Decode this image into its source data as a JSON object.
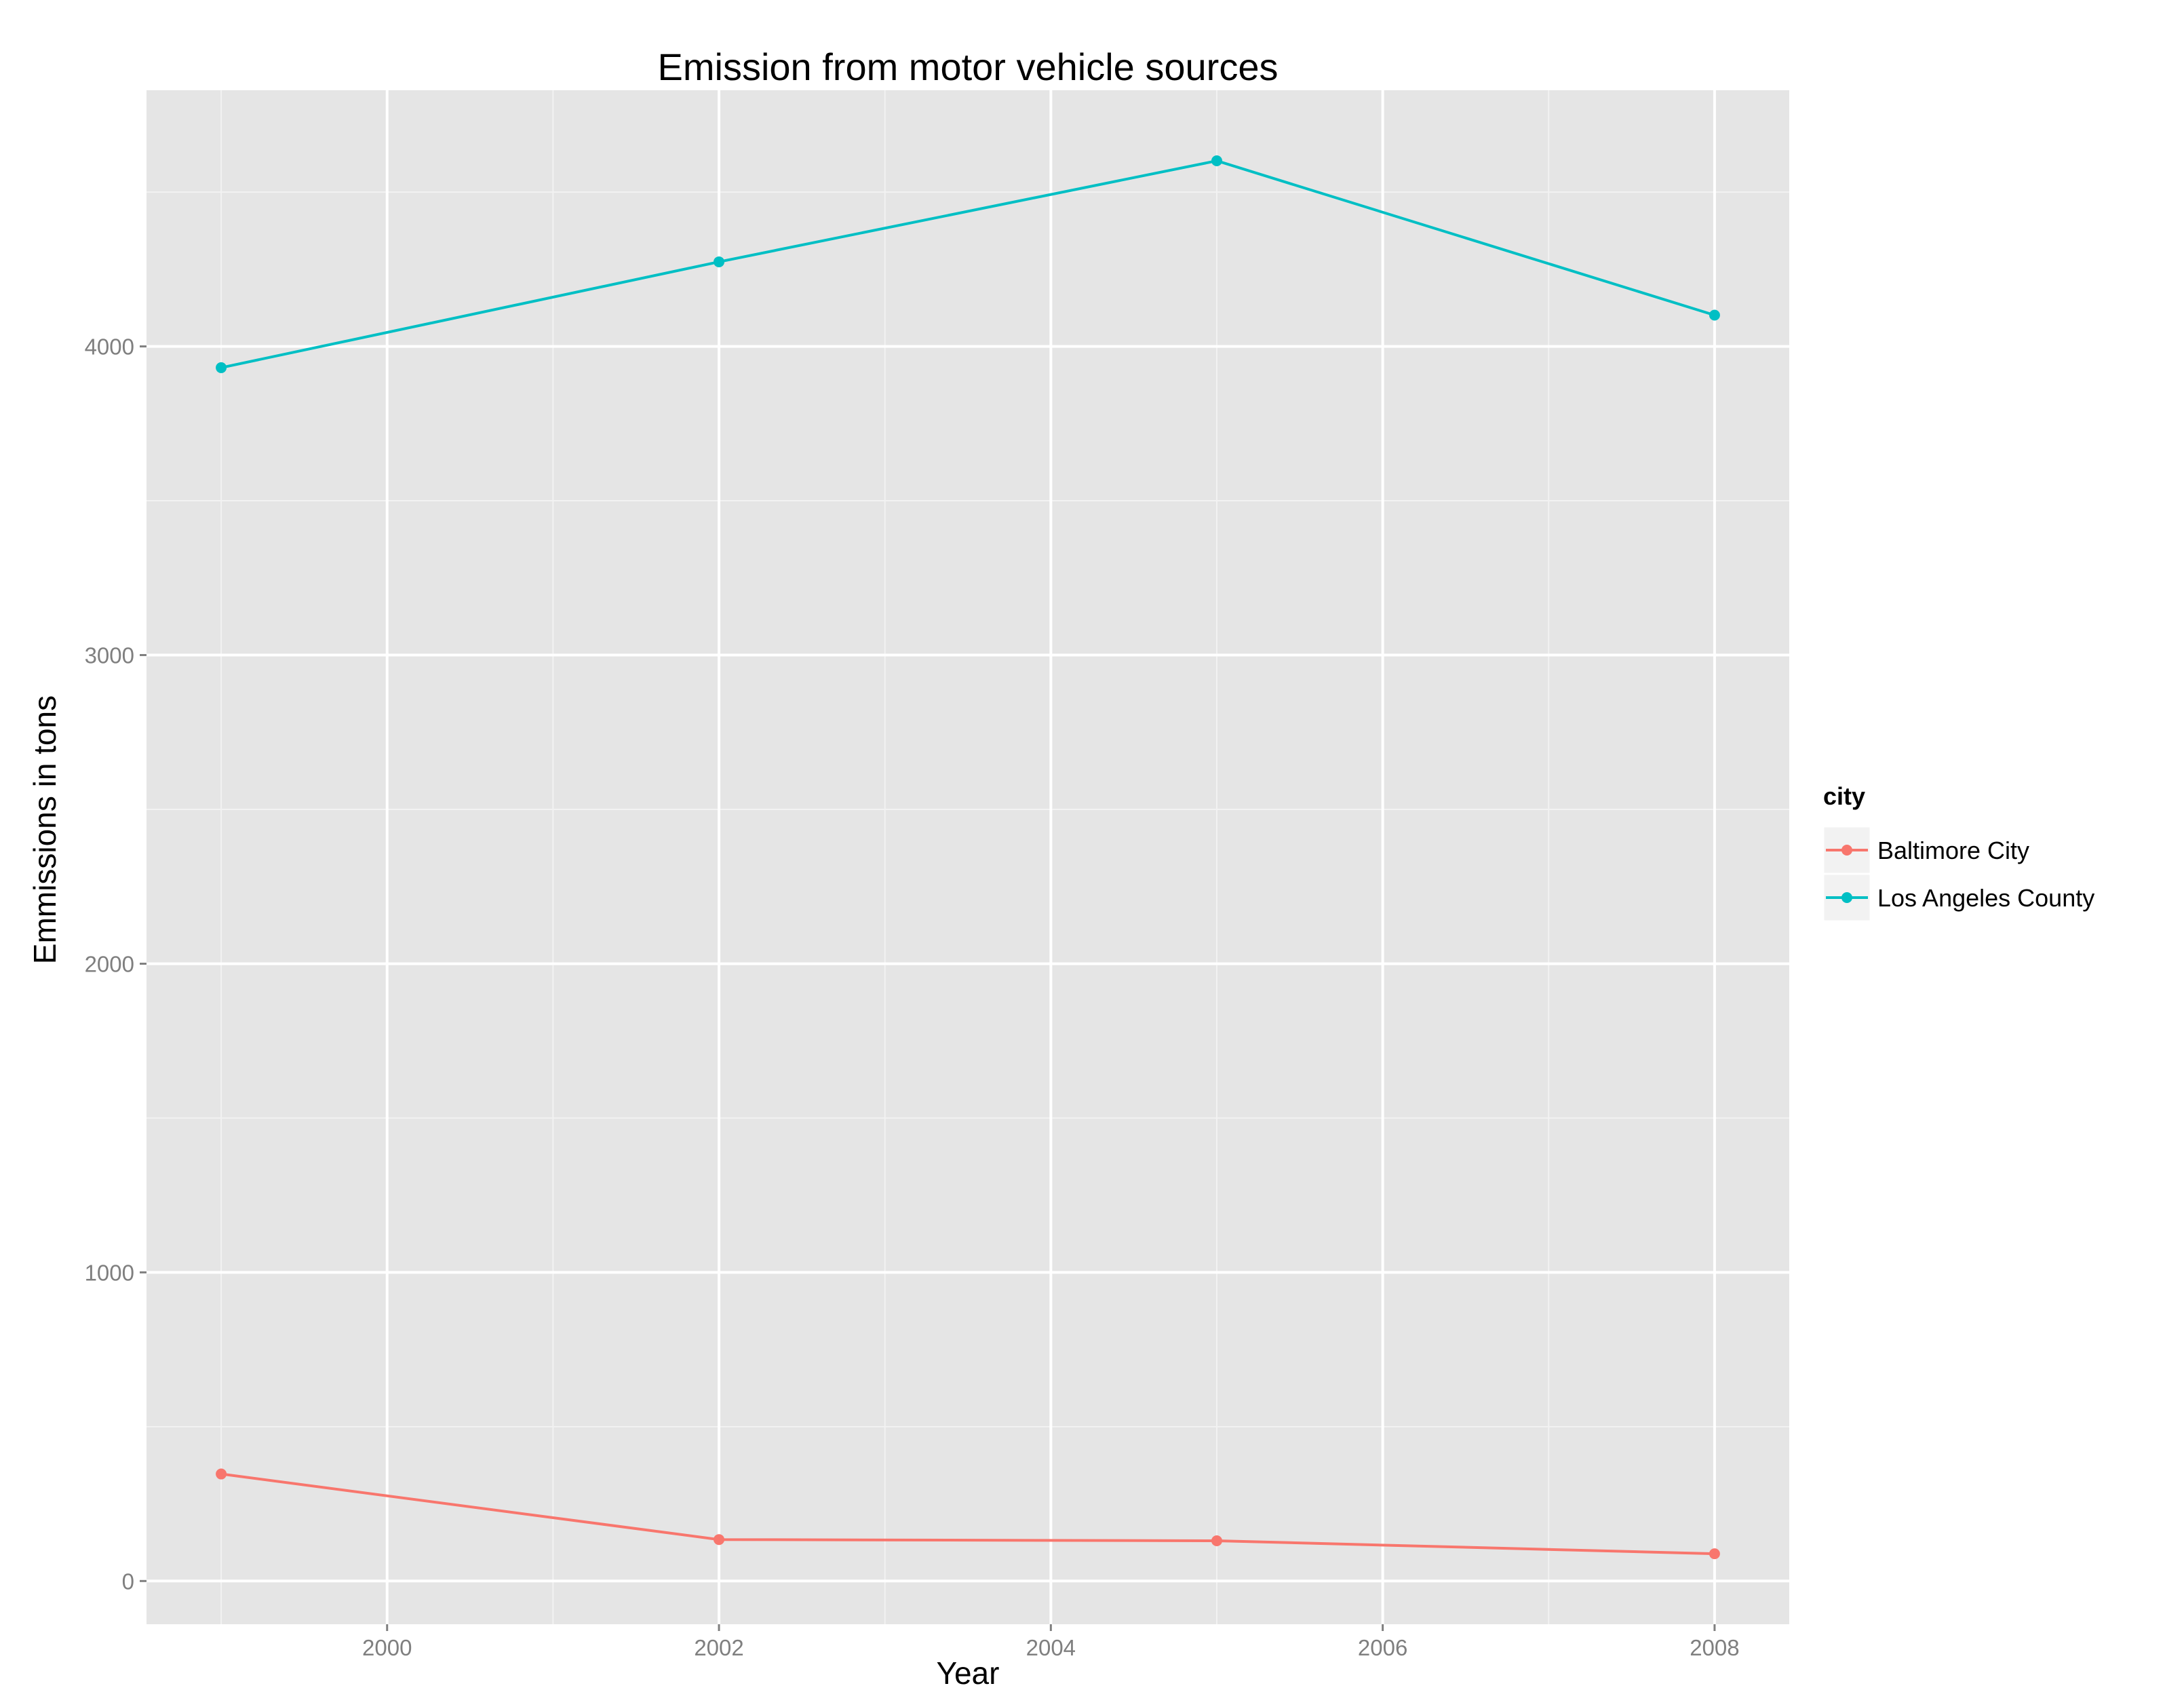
{
  "chart_data": {
    "type": "line",
    "title": "Emission from motor vehicle sources",
    "xlabel": "Year",
    "ylabel": "Emmissions in tons",
    "x": [
      1999,
      2002,
      2005,
      2008
    ],
    "xlim": [
      1998.55,
      2008.45
    ],
    "ylim": [
      -140,
      4830
    ],
    "x_ticks": [
      2000,
      2002,
      2004,
      2006,
      2008
    ],
    "x_tick_labels": [
      "2000",
      "2002",
      "2004",
      "2006",
      "2008"
    ],
    "x_minor_ticks": [
      1999,
      2001,
      2003,
      2005,
      2007
    ],
    "y_ticks": [
      0,
      1000,
      2000,
      3000,
      4000
    ],
    "y_tick_labels": [
      "0",
      "1000",
      "2000",
      "3000",
      "4000"
    ],
    "y_minor_ticks": [
      500,
      1500,
      2500,
      3500,
      4500
    ],
    "grid": true,
    "legend": {
      "title": "city",
      "position": "right"
    },
    "series": [
      {
        "name": "Baltimore City",
        "color": "#F8766D",
        "values": [
          346.8,
          134.3,
          130.4,
          88.3
        ]
      },
      {
        "name": "Los Angeles County",
        "color": "#00BFC4",
        "values": [
          3931.1,
          4274.0,
          4601.4,
          4101.3
        ]
      }
    ],
    "panel_background": "#E5E5E5",
    "grid_color": "#FFFFFF"
  }
}
